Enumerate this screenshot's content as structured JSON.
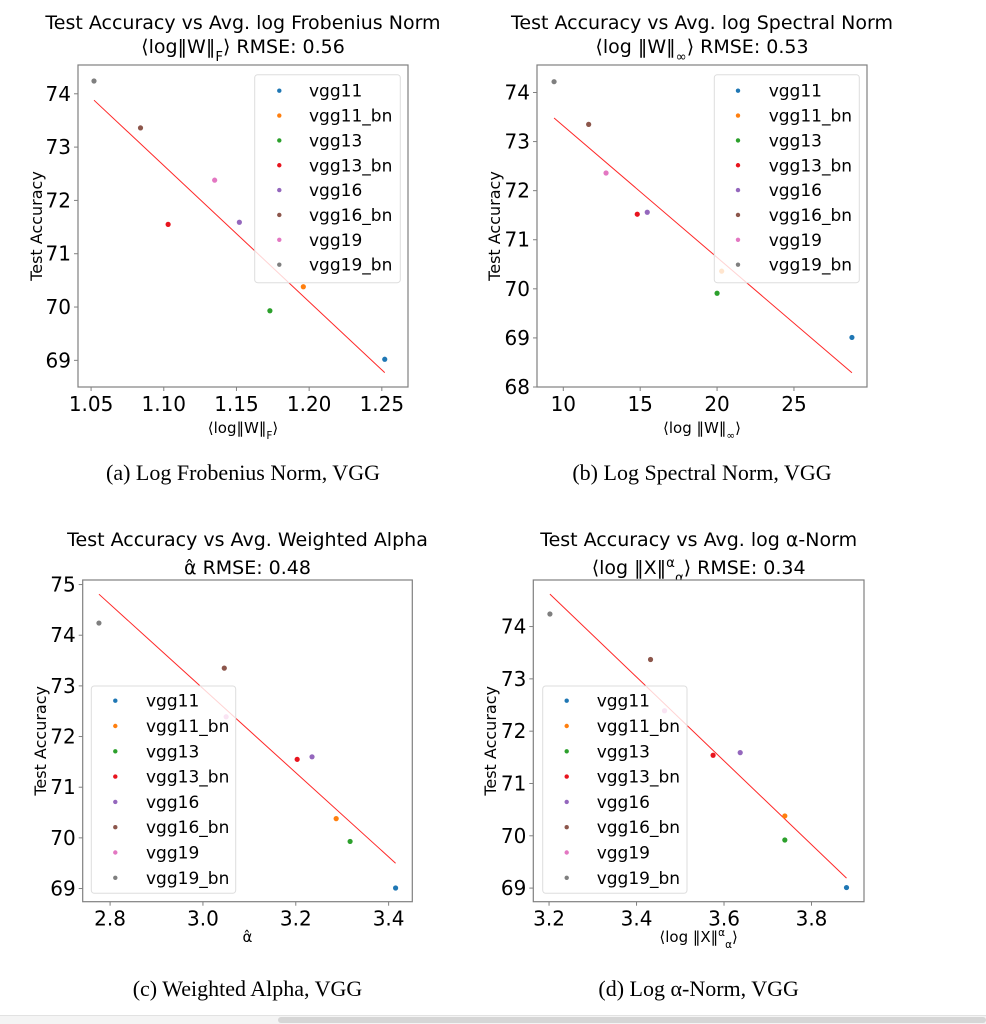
{
  "colors": {
    "vgg11": "#1f77b4",
    "vgg11_bn": "#ff7f0e",
    "vgg13": "#2ca02c",
    "vgg13_bn": "#e8141e",
    "vgg16": "#9467bd",
    "vgg16_bn": "#8c564b",
    "vgg19": "#e377c2",
    "vgg19_bn": "#7f7f7f",
    "fit_line": "#ff0000"
  },
  "chart_data": [
    {
      "id": "a",
      "type": "scatter",
      "title_line1": "Test Accuracy vs Avg. log Frobenius Norm",
      "title_line2": "⟨log‖W‖_F⟩ RMSE: 0.56",
      "xlabel": "⟨log‖W‖_F⟩",
      "ylabel": "Test Accuracy",
      "caption": "(a)  Log Frobenius Norm, VGG",
      "xlim": [
        1.041,
        1.268
      ],
      "ylim": [
        68.5,
        74.54
      ],
      "xticks": [
        1.05,
        1.1,
        1.15,
        1.2,
        1.25
      ],
      "xtick_labels": [
        "1.05",
        "1.10",
        "1.15",
        "1.20",
        "1.25"
      ],
      "yticks": [
        69,
        70,
        71,
        72,
        73,
        74
      ],
      "ytick_labels": [
        "69",
        "70",
        "71",
        "72",
        "73",
        "74"
      ],
      "legend_position": "upper-right",
      "series": [
        {
          "name": "vgg11",
          "x": 1.252,
          "y": 69.02
        },
        {
          "name": "vgg11_bn",
          "x": 1.196,
          "y": 70.38
        },
        {
          "name": "vgg13",
          "x": 1.173,
          "y": 69.93
        },
        {
          "name": "vgg13_bn",
          "x": 1.103,
          "y": 71.55
        },
        {
          "name": "vgg16",
          "x": 1.152,
          "y": 71.59
        },
        {
          "name": "vgg16_bn",
          "x": 1.084,
          "y": 73.36
        },
        {
          "name": "vgg19",
          "x": 1.135,
          "y": 72.38
        },
        {
          "name": "vgg19_bn",
          "x": 1.052,
          "y": 74.24
        }
      ],
      "fit_line": {
        "x": [
          1.052,
          1.252
        ],
        "y": [
          73.88,
          68.77
        ]
      }
    },
    {
      "id": "b",
      "type": "scatter",
      "title_line1": "Test Accuracy vs Avg. log Spectral Norm",
      "title_line2": "⟨log ‖W‖_∞⟩ RMSE: 0.53",
      "xlabel": "⟨log ‖W‖_∞⟩",
      "ylabel": "Test Accuracy",
      "caption": "(b)  Log Spectral Norm, VGG",
      "xlim": [
        8.29,
        29.75
      ],
      "ylim": [
        68.0,
        74.56
      ],
      "xticks": [
        10,
        15,
        20,
        25
      ],
      "xtick_labels": [
        "10",
        "15",
        "20",
        "25"
      ],
      "yticks": [
        68,
        69,
        70,
        71,
        72,
        73,
        74
      ],
      "ytick_labels": [
        "68",
        "69",
        "70",
        "71",
        "72",
        "73",
        "74"
      ],
      "legend_position": "upper-right",
      "series": [
        {
          "name": "vgg11",
          "x": 28.77,
          "y": 69.01
        },
        {
          "name": "vgg11_bn",
          "x": 20.3,
          "y": 70.36
        },
        {
          "name": "vgg13",
          "x": 20.0,
          "y": 69.91
        },
        {
          "name": "vgg13_bn",
          "x": 14.81,
          "y": 71.52
        },
        {
          "name": "vgg16",
          "x": 15.46,
          "y": 71.56
        },
        {
          "name": "vgg16_bn",
          "x": 11.65,
          "y": 73.35
        },
        {
          "name": "vgg19",
          "x": 12.78,
          "y": 72.36
        },
        {
          "name": "vgg19_bn",
          "x": 9.4,
          "y": 74.22
        }
      ],
      "fit_line": {
        "x": [
          9.4,
          28.77
        ],
        "y": [
          73.48,
          68.29
        ]
      }
    },
    {
      "id": "c",
      "type": "scatter",
      "title_line1": "Test Accuracy vs Avg. Weighted Alpha",
      "title_line2": "α̂ RMSE: 0.48",
      "xlabel": "α̂",
      "ylabel": "Test Accuracy",
      "caption": "(c)  Weighted Alpha, VGG",
      "xlim": [
        2.741,
        3.451
      ],
      "ylim": [
        68.74,
        75.09
      ],
      "xticks": [
        2.8,
        3.0,
        3.2,
        3.4
      ],
      "xtick_labels": [
        "2.8",
        "3.0",
        "3.2",
        "3.4"
      ],
      "yticks": [
        69,
        70,
        71,
        72,
        73,
        74,
        75
      ],
      "ytick_labels": [
        "69",
        "70",
        "71",
        "72",
        "73",
        "74",
        "75"
      ],
      "legend_position": "lower-left",
      "series": [
        {
          "name": "vgg11",
          "x": 3.415,
          "y": 69.01
        },
        {
          "name": "vgg11_bn",
          "x": 3.287,
          "y": 70.38
        },
        {
          "name": "vgg13",
          "x": 3.317,
          "y": 69.93
        },
        {
          "name": "vgg13_bn",
          "x": 3.203,
          "y": 71.55
        },
        {
          "name": "vgg16",
          "x": 3.235,
          "y": 71.6
        },
        {
          "name": "vgg16_bn",
          "x": 3.046,
          "y": 73.35
        },
        {
          "name": "vgg19",
          "x": 3.05,
          "y": 72.39
        },
        {
          "name": "vgg19_bn",
          "x": 2.776,
          "y": 74.24
        }
      ],
      "fit_line": {
        "x": [
          2.776,
          3.415
        ],
        "y": [
          74.81,
          69.5
        ]
      }
    },
    {
      "id": "d",
      "type": "scatter",
      "title_line1": "Test Accuracy vs Avg. log α-Norm",
      "title_line2": "⟨log ‖X‖^α_α⟩ RMSE: 0.34",
      "xlabel": "⟨log ‖X‖^α_α⟩",
      "ylabel": "Test Accuracy",
      "caption": "(d)  Log α-Norm, VGG",
      "xlim": [
        3.164,
        3.92
      ],
      "ylim": [
        68.74,
        74.89
      ],
      "xticks": [
        3.2,
        3.4,
        3.6,
        3.8
      ],
      "xtick_labels": [
        "3.2",
        "3.4",
        "3.6",
        "3.8"
      ],
      "yticks": [
        69,
        70,
        71,
        72,
        73,
        74
      ],
      "ytick_labels": [
        "69",
        "70",
        "71",
        "72",
        "73",
        "74"
      ],
      "legend_position": "lower-left",
      "series": [
        {
          "name": "vgg11",
          "x": 3.88,
          "y": 69.01
        },
        {
          "name": "vgg11_bn",
          "x": 3.739,
          "y": 70.38
        },
        {
          "name": "vgg13",
          "x": 3.739,
          "y": 69.92
        },
        {
          "name": "vgg13_bn",
          "x": 3.575,
          "y": 71.54
        },
        {
          "name": "vgg16",
          "x": 3.637,
          "y": 71.59
        },
        {
          "name": "vgg16_bn",
          "x": 3.432,
          "y": 73.37
        },
        {
          "name": "vgg19",
          "x": 3.464,
          "y": 72.39
        },
        {
          "name": "vgg19_bn",
          "x": 3.202,
          "y": 74.24
        }
      ],
      "fit_line": {
        "x": [
          3.202,
          3.88
        ],
        "y": [
          74.62,
          69.19
        ]
      }
    }
  ],
  "legend_labels": [
    "vgg11",
    "vgg11_bn",
    "vgg13",
    "vgg13_bn",
    "vgg16",
    "vgg16_bn",
    "vgg19",
    "vgg19_bn"
  ]
}
